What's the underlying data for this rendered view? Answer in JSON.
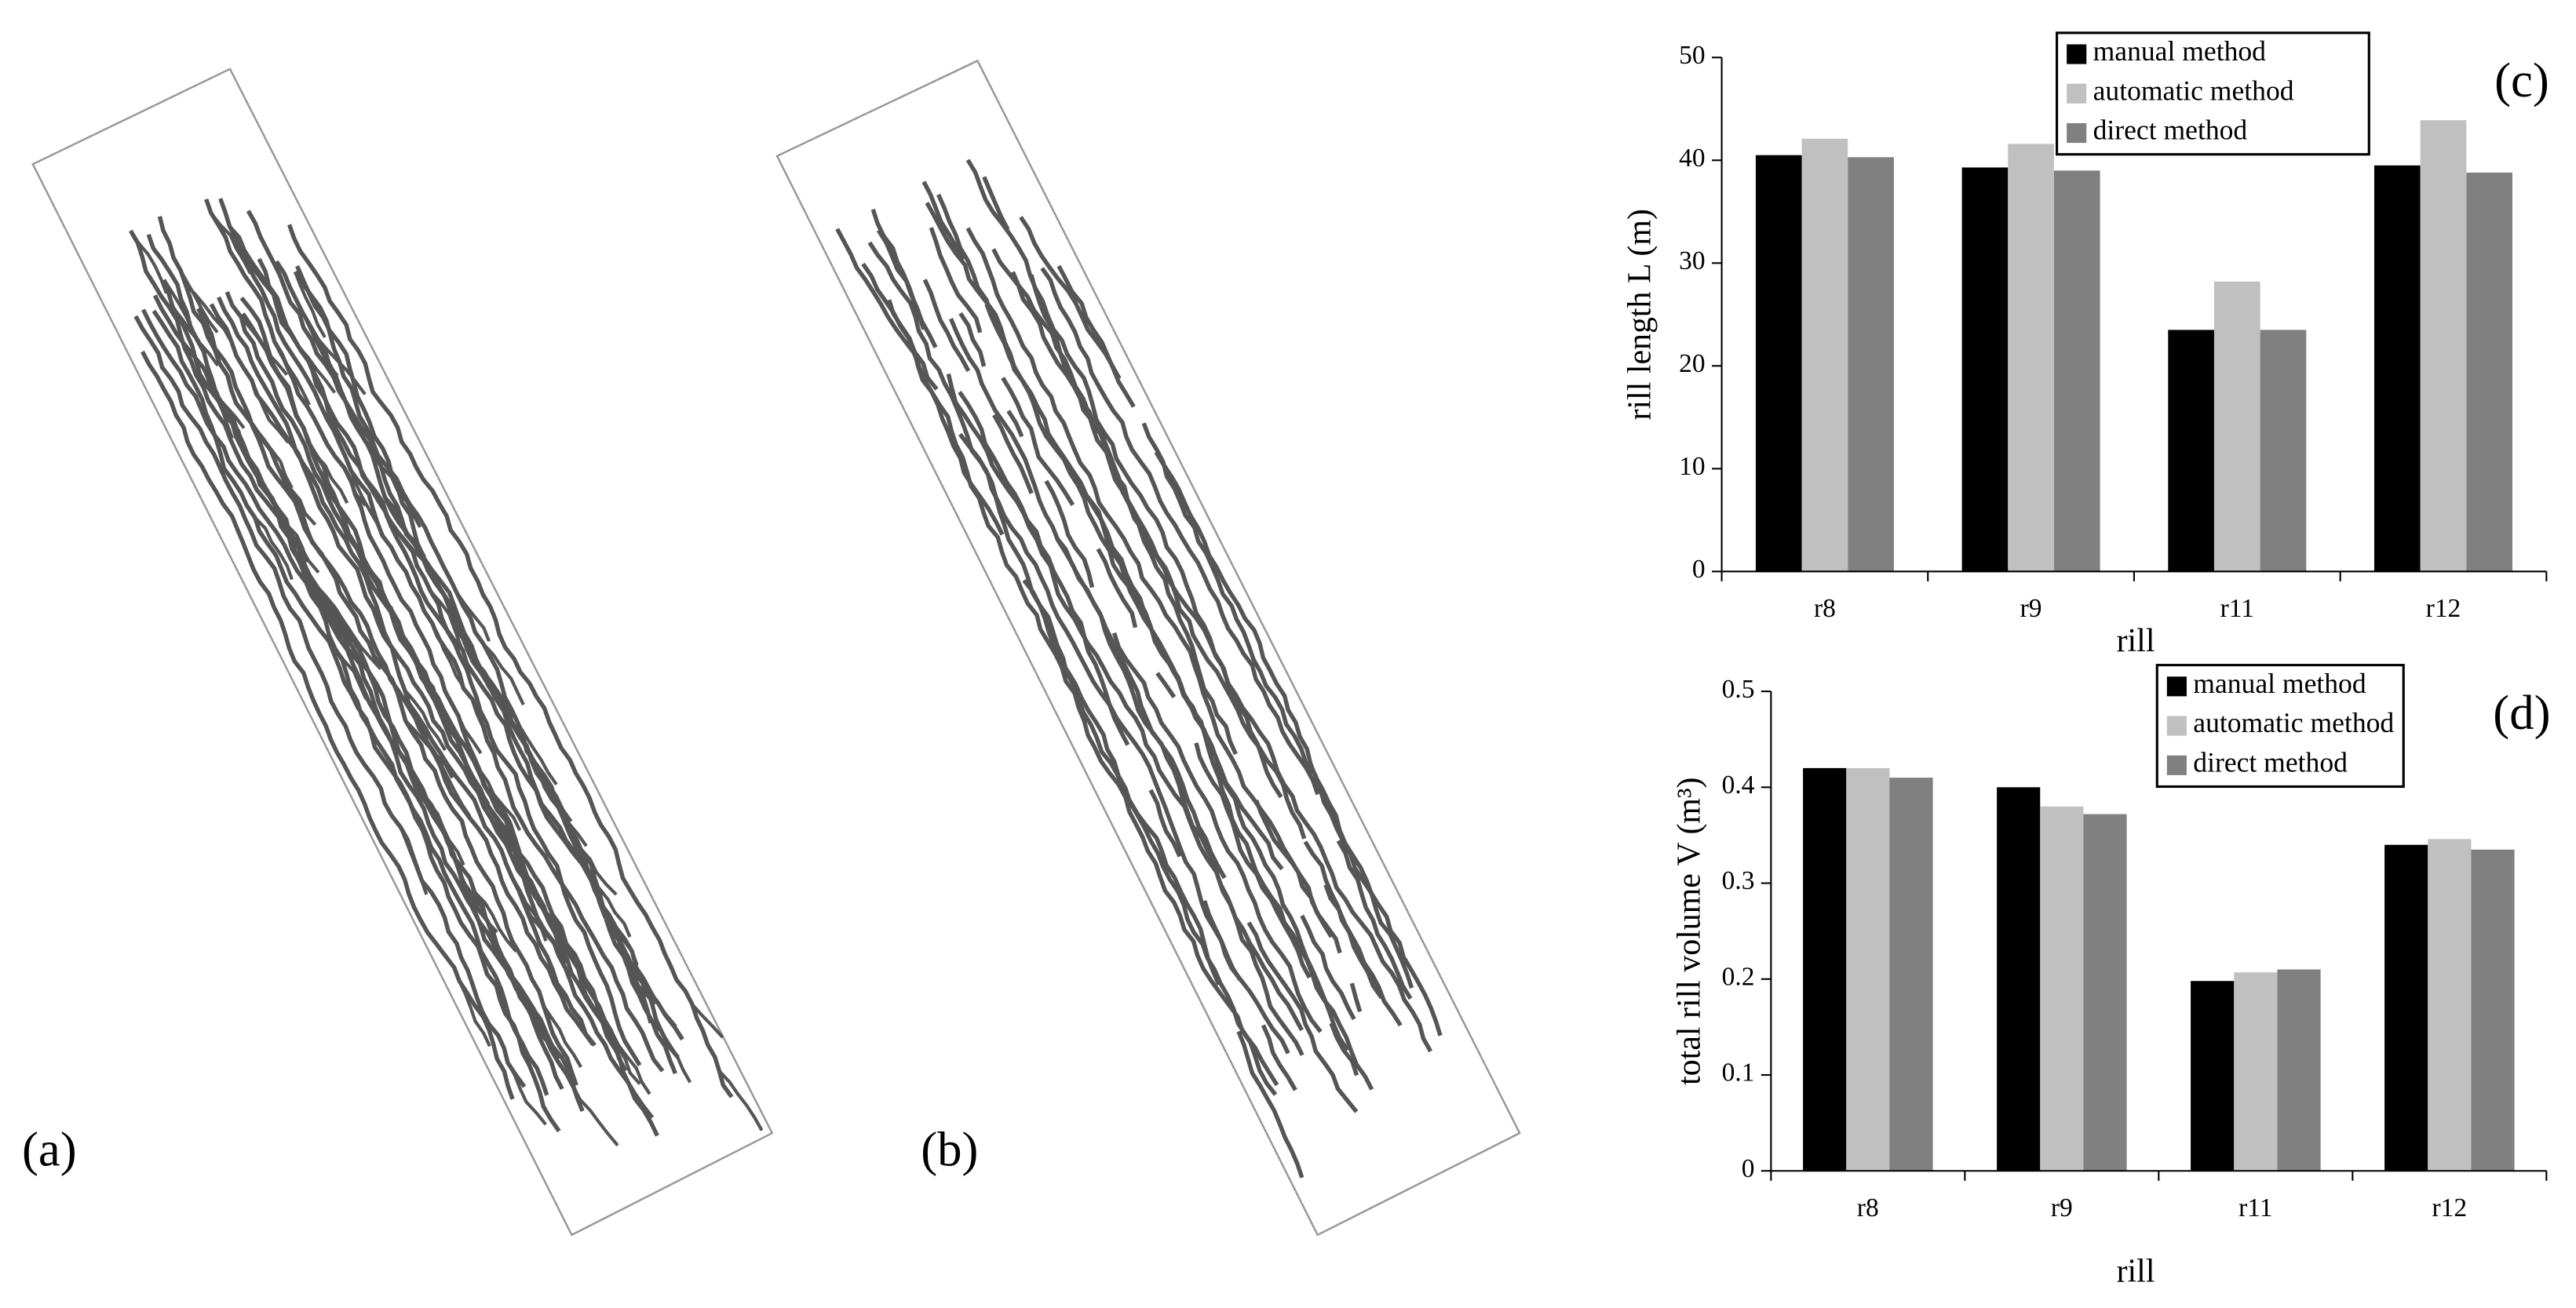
{
  "figure_labels": [
    "(a)",
    "(b)"
  ],
  "chart_data": [
    {
      "type": "bar",
      "label": "(c)",
      "y_label": "rill length L (m)",
      "x_label": "rill",
      "categories": [
        "r8",
        "r9",
        "r11",
        "r12"
      ],
      "series": [
        {
          "name": "manual method",
          "color": "#000000",
          "values": [
            40.5,
            39.3,
            23.5,
            39.5
          ]
        },
        {
          "name": "automatic method",
          "color": "#c0c0c0",
          "values": [
            42.1,
            41.6,
            28.2,
            43.9
          ]
        },
        {
          "name": "direct method",
          "color": "#808080",
          "values": [
            40.3,
            39.0,
            23.5,
            38.8
          ]
        }
      ],
      "ylim": [
        0,
        50
      ],
      "yticks": [
        0,
        10,
        20,
        30,
        40,
        50
      ]
    },
    {
      "type": "bar",
      "label": "(d)",
      "y_label": "total rill volume V (m³)",
      "x_label": "rill",
      "categories": [
        "r8",
        "r9",
        "r11",
        "r12"
      ],
      "series": [
        {
          "name": "manual method",
          "color": "#000000",
          "values": [
            0.42,
            0.4,
            0.198,
            0.34
          ]
        },
        {
          "name": "automatic method",
          "color": "#c0c0c0",
          "values": [
            0.42,
            0.38,
            0.207,
            0.346
          ]
        },
        {
          "name": "direct method",
          "color": "#808080",
          "values": [
            0.41,
            0.372,
            0.21,
            0.335
          ]
        }
      ],
      "ylim": [
        0,
        0.5
      ],
      "yticks": [
        0,
        0.1,
        0.2,
        0.3,
        0.4,
        0.5
      ]
    }
  ]
}
